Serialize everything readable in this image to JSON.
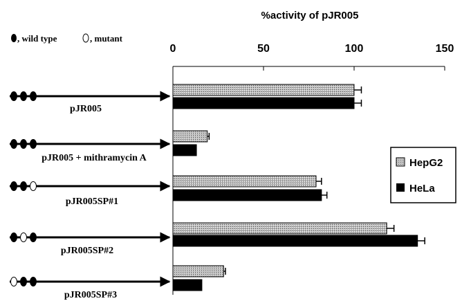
{
  "key": {
    "wild_type_label": ", wild type",
    "mutant_label": ", mutant"
  },
  "chart_data": {
    "type": "bar",
    "orientation": "horizontal",
    "title": "%activity of pJR005",
    "xlim": [
      0,
      150
    ],
    "xticks": [
      0,
      50,
      100,
      150
    ],
    "categories": [
      "pJR005",
      "pJR005 + mithramycin A",
      "pJR005SP#1",
      "pJR005SP#2",
      "pJR005SP#3"
    ],
    "site_patterns": [
      [
        "wild",
        "wild",
        "wild"
      ],
      [
        "wild",
        "wild",
        "wild"
      ],
      [
        "wild",
        "wild",
        "mutant"
      ],
      [
        "wild",
        "mutant",
        "wild"
      ],
      [
        "mutant",
        "wild",
        "wild"
      ]
    ],
    "series": [
      {
        "name": "HepG2",
        "values": [
          100,
          19,
          79,
          118,
          28
        ],
        "errors": [
          4,
          1,
          3,
          4,
          1
        ],
        "fill": "stippled-gray"
      },
      {
        "name": "HeLa",
        "values": [
          100,
          13,
          82,
          135,
          16
        ],
        "errors": [
          4,
          0,
          3,
          4,
          0
        ],
        "fill": "#000000"
      }
    ],
    "legend_position": "right",
    "grid": false
  }
}
